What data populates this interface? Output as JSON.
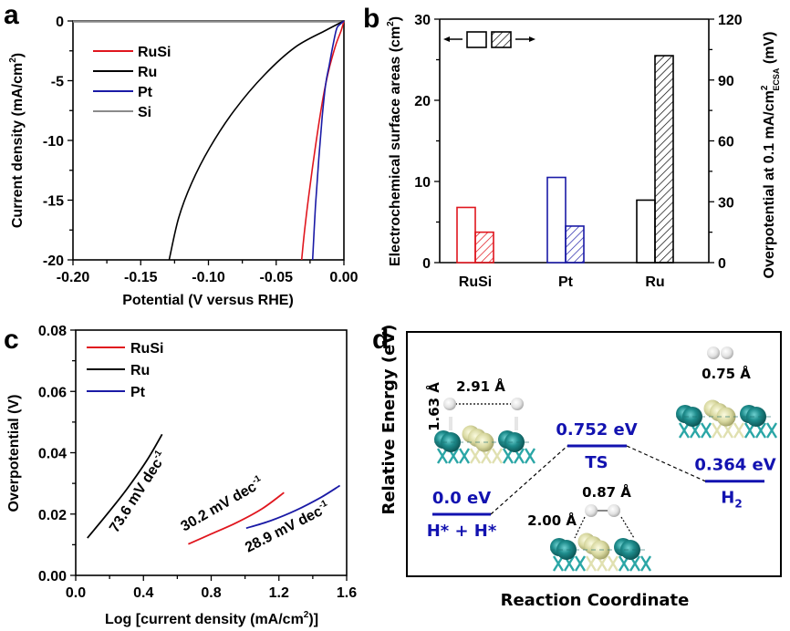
{
  "colors": {
    "RuSi": "#e0161e",
    "Ru": "#000000",
    "Pt": "#1a1aa6",
    "Si": "#8a8a8a",
    "energy_level": "#1212b0",
    "ru_atom": "#1e8c8c",
    "si_atom": "#d8d8a0",
    "h_atom": "#e6e6e6"
  },
  "chart_data": [
    {
      "id": "a",
      "panel_label": "a",
      "type": "line",
      "xlabel": "Potential (V versus RHE)",
      "ylabel": "Current density (mA/cm",
      "ylabel_sup": "2",
      "ylabel_end": ")",
      "xlim": [
        -0.2,
        0.0
      ],
      "ylim": [
        -20,
        0
      ],
      "xticks": [
        -0.2,
        -0.15,
        -0.1,
        -0.05,
        0.0
      ],
      "xtick_labels": [
        "-0.20",
        "-0.15",
        "-0.10",
        "-0.05",
        "0.00"
      ],
      "yticks": [
        0,
        -5,
        -10,
        -15,
        -20
      ],
      "ytick_labels": [
        "0",
        "-5",
        "-10",
        "-15",
        "-20"
      ],
      "legend": [
        "RuSi",
        "Ru",
        "Pt",
        "Si"
      ],
      "legend_position": "upper-left",
      "series": [
        {
          "name": "RuSi",
          "x": [
            0.0,
            -0.002,
            -0.006,
            -0.0105,
            -0.0135,
            -0.017,
            -0.021,
            -0.025,
            -0.0285,
            -0.0312
          ],
          "y": [
            0,
            -0.8,
            -2.0,
            -3.8,
            -5.3,
            -7.5,
            -10.5,
            -13.8,
            -17.0,
            -20.0
          ]
        },
        {
          "name": "Ru",
          "x": [
            0.0,
            -0.0137,
            -0.036,
            -0.0586,
            -0.081,
            -0.099,
            -0.1125,
            -0.122,
            -0.129
          ],
          "y": [
            0,
            -0.8,
            -2.2,
            -4.5,
            -7.5,
            -10.6,
            -13.6,
            -16.5,
            -20.0
          ]
        },
        {
          "name": "Pt",
          "x": [
            0.0,
            -0.003,
            -0.0054,
            -0.008,
            -0.011,
            -0.0135,
            -0.016,
            -0.0185,
            -0.021,
            -0.0231
          ],
          "y": [
            0,
            -0.3,
            -0.66,
            -2.0,
            -3.8,
            -5.3,
            -8.0,
            -11.5,
            -15.5,
            -20.0
          ]
        },
        {
          "name": "Si",
          "x": [
            -0.2,
            0.0
          ],
          "y": [
            -0.05,
            -0.05
          ]
        }
      ]
    },
    {
      "id": "b",
      "panel_label": "b",
      "type": "bar",
      "categories": [
        "RuSi",
        "Pt",
        "Ru"
      ],
      "ylabel": "Electrochemical surface areas (cm",
      "ylabel_sup": "2",
      "ylabel_end": ")",
      "ylim": [
        0,
        30
      ],
      "yticks": [
        0,
        10,
        20,
        30
      ],
      "ytick_labels": [
        "0",
        "10",
        "20",
        "30"
      ],
      "y2label": "Overpotential at 0.1 mA/cm",
      "y2label_sup": "2",
      "y2label_sub": "ECSA",
      "y2label_end": " (mV)",
      "y2lim": [
        0,
        120
      ],
      "y2ticks": [
        0,
        30,
        60,
        90,
        120
      ],
      "y2tick_labels": [
        "0",
        "30",
        "60",
        "90",
        "120"
      ],
      "legend": "open bars → left axis (ECSA); hatched bars → right axis (overpotential)",
      "legend_position": "upper-left",
      "series": [
        {
          "name": "Electrochemical surface area (cm2)",
          "axis": "left",
          "style": "open",
          "values": [
            6.8,
            10.5,
            7.7
          ]
        },
        {
          "name": "Overpotential at 0.1 mA/cm2 ECSA (mV)",
          "axis": "right",
          "style": "hatched",
          "values": [
            15,
            18,
            102
          ]
        }
      ]
    },
    {
      "id": "c",
      "panel_label": "c",
      "type": "line",
      "xlabel": "Log [current density (mA/cm",
      "xlabel_sup": "2",
      "xlabel_end": ")]",
      "ylabel": "Overpotential (V)",
      "xlim": [
        0.0,
        1.6
      ],
      "ylim": [
        0.0,
        0.08
      ],
      "xticks": [
        0.0,
        0.4,
        0.8,
        1.2,
        1.6
      ],
      "xtick_labels": [
        "0.0",
        "0.4",
        "0.8",
        "1.2",
        "1.6"
      ],
      "yticks": [
        0.0,
        0.02,
        0.04,
        0.06,
        0.08
      ],
      "ytick_labels": [
        "0.00",
        "0.02",
        "0.04",
        "0.06",
        "0.08"
      ],
      "legend": [
        "RuSi",
        "Ru",
        "Pt"
      ],
      "legend_position": "upper-left",
      "series": [
        {
          "name": "RuSi",
          "x": [
            0.665,
            0.8,
            0.95,
            1.1,
            1.23
          ],
          "y": [
            0.0102,
            0.0135,
            0.0172,
            0.0217,
            0.027
          ]
        },
        {
          "name": "Ru",
          "x": [
            0.069,
            0.18,
            0.3,
            0.42,
            0.51
          ],
          "y": [
            0.0122,
            0.0196,
            0.028,
            0.0375,
            0.046
          ]
        },
        {
          "name": "Pt",
          "x": [
            1.007,
            1.15,
            1.3,
            1.45,
            1.56
          ],
          "y": [
            0.0154,
            0.0178,
            0.0212,
            0.0255,
            0.0293
          ]
        }
      ],
      "annotations": [
        {
          "series": "Ru",
          "text": "73.6 mV dec",
          "sup": "-1"
        },
        {
          "series": "RuSi",
          "text": "30.2 mV dec",
          "sup": "-1"
        },
        {
          "series": "Pt",
          "text": "28.9 mV dec",
          "sup": "-1"
        }
      ]
    },
    {
      "id": "d",
      "panel_label": "d",
      "type": "line",
      "xlabel": "Reaction Coordinate",
      "ylabel": "Relative Energy (eV)",
      "states": [
        {
          "name": "H* + H*",
          "energy_eV": 0.0,
          "label": "0.0 eV"
        },
        {
          "name": "TS",
          "energy_eV": 0.752,
          "label": "0.752 eV"
        },
        {
          "name": "H2",
          "energy_eV": 0.364,
          "label": "0.364 eV",
          "name_main": "H",
          "name_sub": "2"
        }
      ],
      "structures": [
        {
          "state": "H* + H*",
          "distances": [
            "1.63 Å",
            "2.91 Å"
          ]
        },
        {
          "state": "TS",
          "distances": [
            "2.00 Å",
            "0.87 Å"
          ]
        },
        {
          "state": "H2",
          "distances": [
            "0.75 Å"
          ]
        }
      ]
    }
  ]
}
